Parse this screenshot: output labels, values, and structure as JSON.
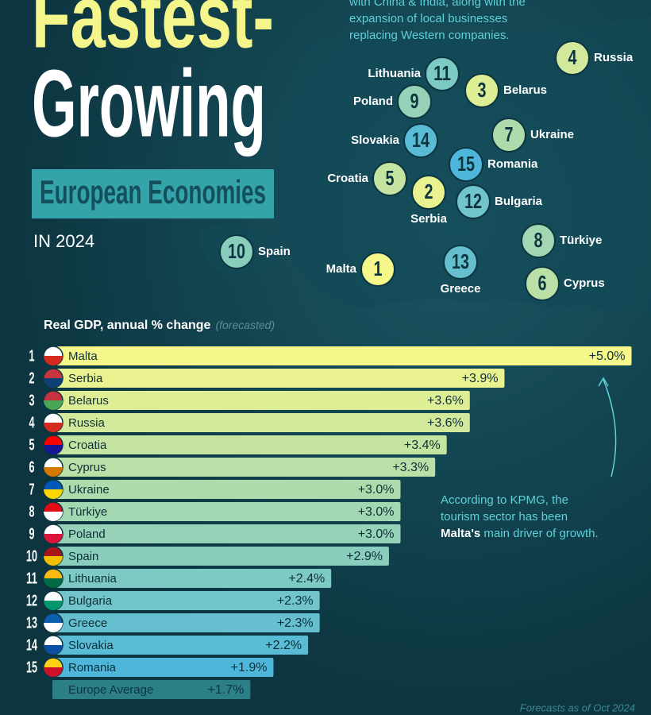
{
  "title_line1": "Fastest-",
  "title_line2": "Growing",
  "title_box": "European Economies",
  "year": "IN 2024",
  "top_note": [
    "with China & India, along with the",
    "expansion of local businesses",
    "replacing Western companies."
  ],
  "map": [
    {
      "country": "Lithuania",
      "rank": 11
    },
    {
      "country": "Belarus",
      "rank": 3
    },
    {
      "country": "Russia",
      "rank": 4
    },
    {
      "country": "Poland",
      "rank": 9
    },
    {
      "country": "Ukraine",
      "rank": 7
    },
    {
      "country": "Slovakia",
      "rank": 14
    },
    {
      "country": "Romania",
      "rank": 15
    },
    {
      "country": "Croatia",
      "rank": 5
    },
    {
      "country": "Serbia",
      "rank": 2
    },
    {
      "country": "Bulgaria",
      "rank": 12
    },
    {
      "country": "Türkiye",
      "rank": 8
    },
    {
      "country": "Spain",
      "rank": 10
    },
    {
      "country": "Malta",
      "rank": 1
    },
    {
      "country": "Greece",
      "rank": 13
    },
    {
      "country": "Cyprus",
      "rank": 6
    }
  ],
  "chart_data": {
    "type": "bar",
    "orientation": "horizontal",
    "subtitle": "Real GDP, annual % change",
    "subtitle_note": "(forecasted)",
    "ranks": [
      1,
      2,
      3,
      4,
      5,
      6,
      7,
      8,
      9,
      10,
      11,
      12,
      13,
      14,
      15
    ],
    "categories": [
      "Malta",
      "Serbia",
      "Belarus",
      "Russia",
      "Croatia",
      "Cyprus",
      "Ukraine",
      "Türkiye",
      "Poland",
      "Spain",
      "Lithuania",
      "Bulgaria",
      "Greece",
      "Slovakia",
      "Romania"
    ],
    "values": [
      5.0,
      3.9,
      3.6,
      3.6,
      3.4,
      3.3,
      3.0,
      3.0,
      3.0,
      2.9,
      2.4,
      2.3,
      2.3,
      2.2,
      1.9
    ],
    "value_labels": [
      "+5.0%",
      "+3.9%",
      "+3.6%",
      "+3.6%",
      "+3.4%",
      "+3.3%",
      "+3.0%",
      "+3.0%",
      "+3.0%",
      "+2.9%",
      "+2.4%",
      "+2.3%",
      "+2.3%",
      "+2.2%",
      "+1.9%"
    ],
    "colors": [
      "#f6f78a",
      "#4db6da"
    ],
    "average": {
      "name": "Europe Average",
      "value": 1.7,
      "value_label": "+1.7%",
      "color": "#2d7f86"
    },
    "annotation": {
      "lines": [
        "According to KPMG, the",
        "tourism sector has been"
      ],
      "highlight": "Malta's",
      "rest": " main driver of growth."
    },
    "footnote": "Forecasts as of Oct 2024"
  }
}
